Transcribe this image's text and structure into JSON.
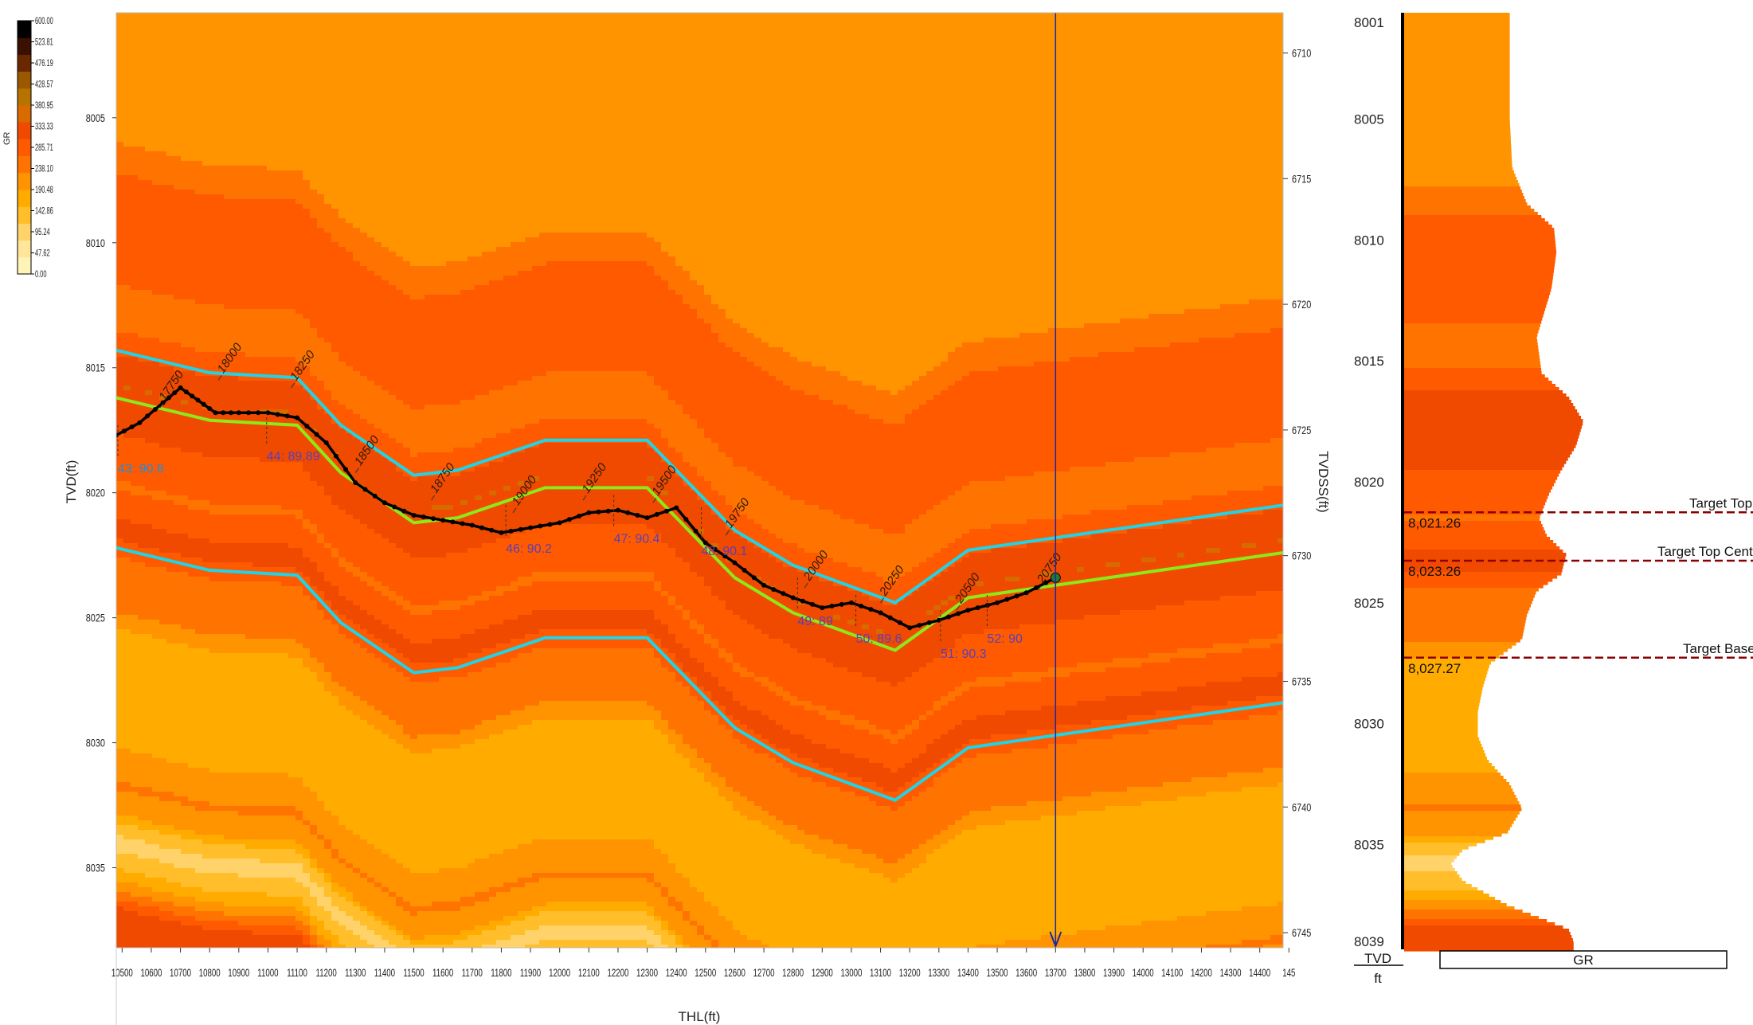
{
  "colors": {
    "gr_palette": [
      "#fff4b8",
      "#ffe69a",
      "#ffd26a",
      "#ffbe2a",
      "#ffab00",
      "#ff9400",
      "#ff7400",
      "#ff5a00",
      "#f04a00",
      "#d86a00",
      "#b87200",
      "#9a5800",
      "#6a2800",
      "#3a1000",
      "#000000"
    ],
    "offset_top": "#22d3e6",
    "offset_base": "#22d3e6",
    "target_center": "#8ee81a",
    "wellpath": "#000000",
    "cursor_line": "#1a2aa0",
    "target_marker": "#8b0000",
    "annotation": "#5a3fb8"
  },
  "colorbar": {
    "title": "GR",
    "ticks": [
      "600.00",
      "523.81",
      "476.19",
      "428.57",
      "380.95",
      "333.33",
      "285.71",
      "238.10",
      "190.48",
      "142.86",
      "95.24",
      "47.62",
      "0.00"
    ]
  },
  "chart_data": [
    {
      "type": "heatmap",
      "title": "",
      "xlabel": "THL(ft)",
      "ylabel": "TVD(ft)",
      "y2label": "TVDSS(ft)",
      "xlim": [
        10480,
        14480
      ],
      "ylim": [
        8038.2,
        8000.8
      ],
      "y2lim": [
        6745.6,
        6708.4
      ],
      "x_ticks": [
        "10500",
        "10600",
        "10700",
        "10800",
        "10900",
        "11000",
        "11100",
        "11200",
        "11300",
        "11400",
        "11500",
        "11600",
        "11700",
        "11800",
        "11900",
        "12000",
        "12100",
        "12200",
        "12300",
        "12400",
        "12500",
        "12600",
        "12700",
        "12800",
        "12900",
        "13000",
        "13100",
        "13200",
        "13300",
        "13400",
        "13500",
        "13600",
        "13700",
        "13800",
        "13900",
        "14000",
        "14100",
        "14200",
        "14300",
        "14400",
        "145"
      ],
      "y_ticks": [
        8005,
        8010,
        8015,
        8020,
        8025,
        8030,
        8035
      ],
      "y2_ticks": [
        6710,
        6715,
        6720,
        6725,
        6730,
        6735,
        6740,
        6745
      ],
      "cursor_x": 13700,
      "structure_shift": {
        "x": [
          10480,
          10800,
          11100,
          11250,
          11500,
          11650,
          11950,
          12300,
          12600,
          12800,
          13150,
          13400,
          14480
        ],
        "shift": [
          -1.8,
          -0.9,
          -0.7,
          1.2,
          3.2,
          3.0,
          1.8,
          1.8,
          5.4,
          6.8,
          8.3,
          6.2,
          4.4
        ]
      },
      "series": [
        {
          "name": "",
          "style": "offset_top",
          "x": [
            10480,
            10800,
            11100,
            11250,
            11500,
            11650,
            11950,
            12300,
            12600,
            12800,
            13150,
            13400,
            14480
          ],
          "y": [
            8014.3,
            8015.2,
            8015.4,
            8017.3,
            8019.3,
            8019.1,
            8017.9,
            8017.9,
            8021.5,
            8022.9,
            8024.4,
            8022.3,
            8020.5
          ]
        },
        {
          "name": "",
          "style": "target_center",
          "x": [
            10480,
            10800,
            11100,
            11250,
            11500,
            11650,
            11950,
            12300,
            12600,
            12800,
            13150,
            13400,
            14480
          ],
          "y": [
            8016.2,
            8017.1,
            8017.3,
            8019.2,
            8021.2,
            8021.0,
            8019.8,
            8019.8,
            8023.4,
            8024.8,
            8026.3,
            8024.2,
            8022.4
          ]
        },
        {
          "name": "",
          "style": "offset_base",
          "x": [
            10480,
            10800,
            11100,
            11250,
            11500,
            11650,
            11950,
            12300,
            12600,
            12800,
            13150,
            13400,
            14480
          ],
          "y": [
            8022.2,
            8023.1,
            8023.3,
            8025.2,
            8027.2,
            8027.0,
            8025.8,
            8025.8,
            8029.4,
            8030.8,
            8032.3,
            8030.2,
            8028.4
          ]
        },
        {
          "name": "",
          "style": "wellpath",
          "x": [
            10480,
            10560,
            10640,
            10700,
            10760,
            10820,
            10900,
            11000,
            11100,
            11200,
            11300,
            11400,
            11500,
            11600,
            11700,
            11800,
            11900,
            12000,
            12100,
            12200,
            12300,
            12400,
            12500,
            12600,
            12700,
            12800,
            12900,
            13000,
            13100,
            13200,
            13300,
            13400,
            13500,
            13600,
            13700
          ],
          "y": [
            8017.7,
            8017.2,
            8016.4,
            8015.8,
            8016.3,
            8016.8,
            8016.8,
            8016.8,
            8017.0,
            8018.0,
            8019.6,
            8020.4,
            8020.9,
            8021.1,
            8021.3,
            8021.6,
            8021.4,
            8021.2,
            8020.8,
            8020.7,
            8021.0,
            8020.6,
            8022.0,
            8022.8,
            8023.7,
            8024.2,
            8024.6,
            8024.4,
            8024.8,
            8025.4,
            8025.1,
            8024.7,
            8024.4,
            8024.0,
            8023.4
          ]
        }
      ],
      "md_labels": [
        {
          "text": "17750",
          "x": 10630,
          "y": 8016.6
        },
        {
          "text": "18000",
          "x": 10830,
          "y": 8015.5
        },
        {
          "text": "18250",
          "x": 11080,
          "y": 8015.8
        },
        {
          "text": "18500",
          "x": 11300,
          "y": 8019.2
        },
        {
          "text": "18750",
          "x": 11560,
          "y": 8020.3
        },
        {
          "text": "19000",
          "x": 11840,
          "y": 8020.8
        },
        {
          "text": "19250",
          "x": 12080,
          "y": 8020.3
        },
        {
          "text": "19500",
          "x": 12320,
          "y": 8020.4
        },
        {
          "text": "19750",
          "x": 12570,
          "y": 8021.7
        },
        {
          "text": "20000",
          "x": 12840,
          "y": 8023.8
        },
        {
          "text": "20250",
          "x": 13100,
          "y": 8024.4
        },
        {
          "text": "20500",
          "x": 13360,
          "y": 8024.7
        },
        {
          "text": "20750",
          "x": 13640,
          "y": 8023.9
        }
      ],
      "survey_labels": [
        {
          "text": "43: 90.8",
          "x": 10480,
          "y": 8019.2,
          "color": "#1a8fe0"
        },
        {
          "text": "44: 89.89",
          "x": 10990,
          "y": 8018.7,
          "color": "#5a3fb8"
        },
        {
          "text": "46: 90.2",
          "x": 11810,
          "y": 8022.4,
          "color": "#5a3fb8"
        },
        {
          "text": "47: 90.4",
          "x": 12180,
          "y": 8022.0,
          "color": "#5a3fb8"
        },
        {
          "text": "48: 90.1",
          "x": 12480,
          "y": 8022.5,
          "color": "#5a3fb8"
        },
        {
          "text": "49: 89",
          "x": 12810,
          "y": 8025.3,
          "color": "#5a3fb8"
        },
        {
          "text": "50: 89.6",
          "x": 13010,
          "y": 8026.0,
          "color": "#5a3fb8"
        },
        {
          "text": "51: 90.3",
          "x": 13300,
          "y": 8026.6,
          "color": "#5a3fb8"
        },
        {
          "text": "52: 90",
          "x": 13460,
          "y": 8026.0,
          "color": "#5a3fb8"
        }
      ]
    },
    {
      "type": "area",
      "title": "",
      "ylabel": "TVD",
      "unit": "ft",
      "track_label": "GR",
      "ylim": [
        8001,
        8039
      ],
      "y_ticks": [
        "8001",
        "8005",
        "8010",
        "8015",
        "8020",
        "8025",
        "8030",
        "8035",
        "8039"
      ],
      "depth": [
        8001.0,
        8003.0,
        8005.0,
        8007.0,
        8008.5,
        8009.5,
        8010.5,
        8012.0,
        8014.0,
        8015.5,
        8016.5,
        8017.5,
        8018.5,
        8019.5,
        8020.5,
        8021.5,
        8022.2,
        8023.0,
        8023.8,
        8024.5,
        8025.5,
        8026.5,
        8027.5,
        8028.5,
        8029.5,
        8030.5,
        8031.5,
        8032.5,
        8033.5,
        8034.5,
        8035.2,
        8035.8,
        8036.5,
        8037.5,
        8038.5,
        8039.0
      ],
      "gr": [
        215,
        215,
        215,
        220,
        250,
        305,
        310,
        300,
        270,
        280,
        335,
        365,
        350,
        320,
        295,
        275,
        290,
        330,
        320,
        270,
        250,
        240,
        175,
        160,
        150,
        150,
        170,
        215,
        240,
        210,
        120,
        95,
        120,
        210,
        335,
        345
      ],
      "markers": [
        {
          "label": "Target Top",
          "depth": 8021.26,
          "depth_text": "8,021.26"
        },
        {
          "label": "Target Top Center",
          "depth": 8023.26,
          "depth_text": "8,023.26"
        },
        {
          "label": "Target Base",
          "depth": 8027.27,
          "depth_text": "8,027.27"
        }
      ]
    }
  ]
}
